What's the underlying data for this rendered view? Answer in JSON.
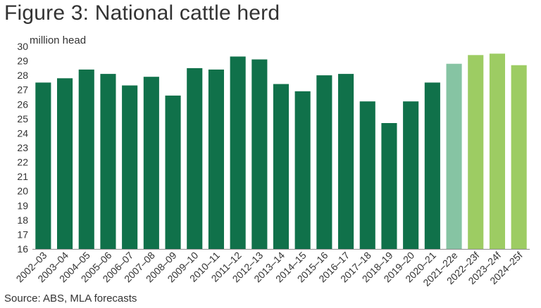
{
  "title": "Figure 3: National cattle herd",
  "source": "Source: ABS, MLA forecasts",
  "colors": {
    "actual": "#10714a",
    "estimate": "#86c4a3",
    "forecast": "#9dcc63",
    "axis": "#8c8c8c",
    "text": "#333333"
  },
  "chart_data": {
    "type": "bar",
    "ylabel": "million head",
    "ylim": [
      16,
      30
    ],
    "yticks": [
      16,
      17,
      18,
      19,
      20,
      21,
      22,
      23,
      24,
      25,
      26,
      27,
      28,
      29,
      30
    ],
    "grid": false,
    "categories": [
      "2002–03",
      "2003–04",
      "2004–05",
      "2005–06",
      "2006–07",
      "2007–08",
      "2008–09",
      "2009–10",
      "2010–11",
      "2011–12",
      "2012–13",
      "2013–14",
      "2014–15",
      "2015–16",
      "2016–17",
      "2017–18",
      "2018–19",
      "2019–20",
      "2020–21",
      "2021–22e",
      "2022–23f",
      "2023–24f",
      "2024–25f"
    ],
    "values": [
      27.5,
      27.8,
      28.4,
      28.1,
      27.3,
      27.9,
      26.6,
      28.5,
      28.4,
      29.3,
      29.1,
      27.4,
      26.9,
      28.0,
      28.1,
      26.2,
      24.7,
      26.2,
      27.5,
      28.8,
      29.4,
      29.5,
      28.7
    ],
    "bar_kind": [
      "actual",
      "actual",
      "actual",
      "actual",
      "actual",
      "actual",
      "actual",
      "actual",
      "actual",
      "actual",
      "actual",
      "actual",
      "actual",
      "actual",
      "actual",
      "actual",
      "actual",
      "actual",
      "actual",
      "estimate",
      "forecast",
      "forecast",
      "forecast"
    ]
  }
}
